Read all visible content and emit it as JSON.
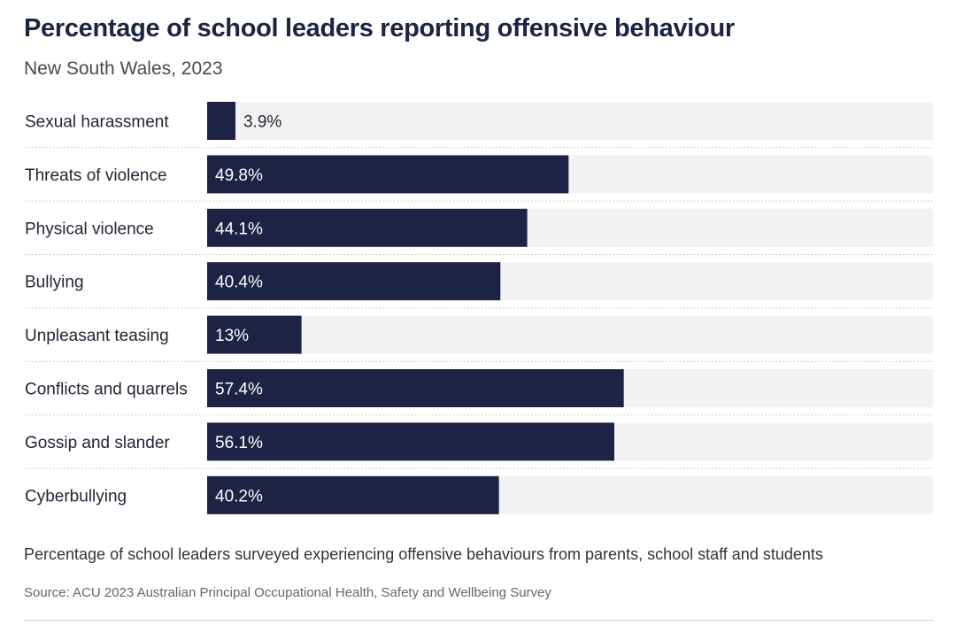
{
  "header": {
    "title": "Percentage of school leaders reporting offensive behaviour",
    "subtitle": "New South Wales, 2023"
  },
  "footer": {
    "description": "Percentage of school leaders surveyed experiencing offensive behaviours from parents, school staff and students",
    "source": "Source: ACU 2023 Australian Principal Occupational Health, Safety and Wellbeing Survey"
  },
  "colors": {
    "bar": "#1c2344",
    "track": "#f2f2f2",
    "label_inside": "#ffffff",
    "label_outside": "#1f2533",
    "category_text": "#1f2533",
    "divider": "#d0d0d0"
  },
  "chart_data": {
    "type": "bar",
    "orientation": "horizontal",
    "title": "Percentage of school leaders reporting offensive behaviour",
    "subtitle": "New South Wales, 2023",
    "categories": [
      "Sexual harassment",
      "Threats of violence",
      "Physical violence",
      "Bullying",
      "Unpleasant teasing",
      "Conflicts and quarrels",
      "Gossip and slander",
      "Cyberbullying"
    ],
    "values": [
      3.9,
      49.8,
      44.1,
      40.4,
      13,
      57.4,
      56.1,
      40.2
    ],
    "value_labels": [
      "3.9%",
      "49.8%",
      "44.1%",
      "40.4%",
      "13%",
      "57.4%",
      "56.1%",
      "40.2%"
    ],
    "xlim": [
      0,
      100
    ],
    "unit": "%",
    "grid": false,
    "legend": "none"
  }
}
